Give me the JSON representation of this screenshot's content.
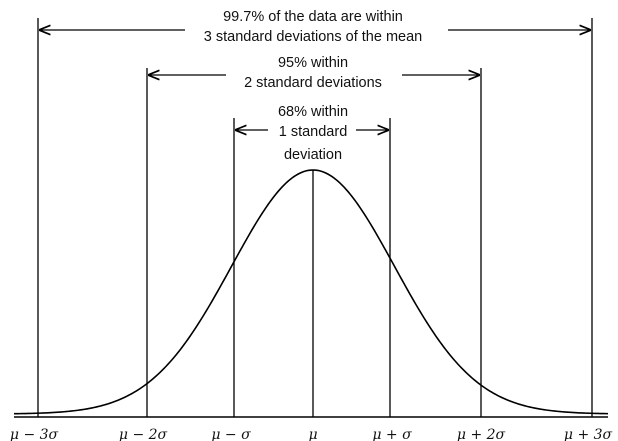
{
  "annotations": {
    "three_sigma": {
      "line1": "99.7% of the data are within",
      "line2": "3 standard deviations of the mean"
    },
    "two_sigma": {
      "line1": "95% within",
      "line2": "2 standard deviations"
    },
    "one_sigma": {
      "line1": "68% within",
      "line2": "1 standard",
      "line3": "deviation"
    }
  },
  "axis_labels": [
    "μ − 3σ",
    "μ − 2σ",
    "μ − σ",
    "μ",
    "μ + σ",
    "μ + 2σ",
    "μ + 3σ"
  ],
  "colors": {
    "line": "#000000",
    "text": "#111111",
    "background": "#ffffff"
  }
}
